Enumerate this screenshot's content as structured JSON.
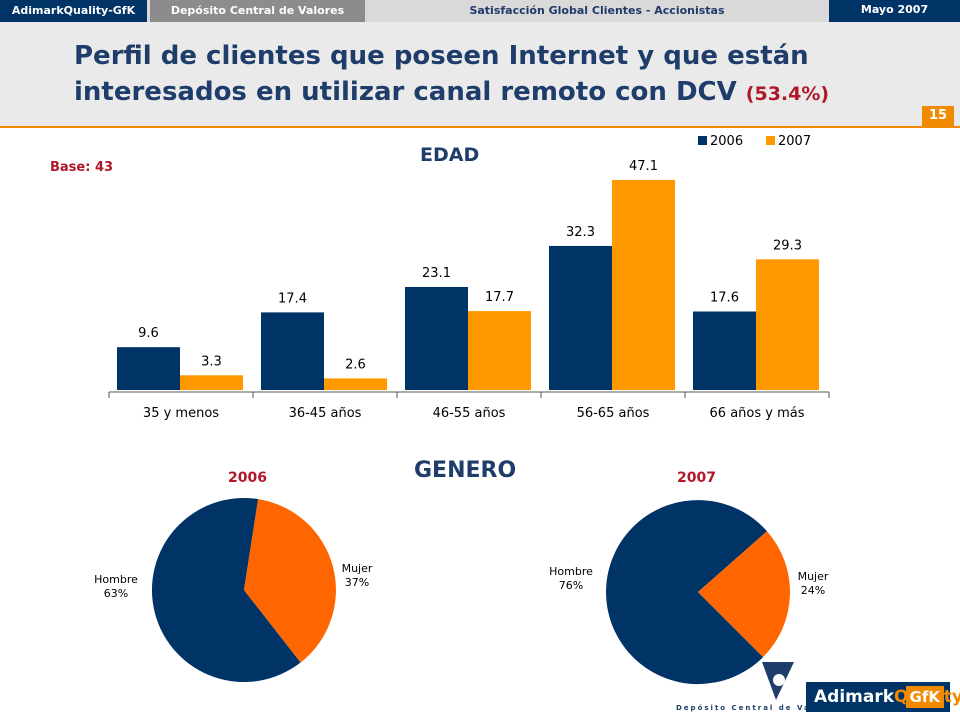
{
  "header": {
    "brand": "AdimarkQuality-GfK",
    "client": "Depósito Central de Valores",
    "study": "Satisfacción Global Clientes - Accionistas",
    "date": "Mayo 2007"
  },
  "title": {
    "text": "Perfil de clientes que poseen Internet y que están interesados en utilizar canal remoto con DCV",
    "pct": "(53.4%)"
  },
  "page_number": "15",
  "base_label": "Base: 43",
  "colors": {
    "s2006": "#003366",
    "s2007": "#ff9900",
    "hombre": "#003366",
    "mujer": "#ff6600",
    "accent": "#f08a00",
    "red_text": "#b0182a"
  },
  "chart_data": [
    {
      "type": "bar",
      "title": "EDAD",
      "categories": [
        "35 y menos",
        "36-45 años",
        "46-55 años",
        "56-65 años",
        "66 años y más"
      ],
      "series": [
        {
          "name": "2006",
          "values": [
            9.6,
            17.4,
            23.1,
            32.3,
            17.6
          ]
        },
        {
          "name": "2007",
          "values": [
            3.3,
            2.6,
            17.7,
            47.1,
            29.3
          ]
        }
      ],
      "legend_position": "top-right",
      "grid": false
    },
    {
      "type": "pie",
      "title": "GENERO",
      "year": "2006",
      "slices": [
        {
          "label": "Hombre",
          "pct_label": "63%",
          "value": 63
        },
        {
          "label": "Mujer",
          "pct_label": "37%",
          "value": 37
        }
      ]
    },
    {
      "type": "pie",
      "title": "GENERO",
      "year": "2007",
      "slices": [
        {
          "label": "Hombre",
          "pct_label": "76%",
          "value": 76
        },
        {
          "label": "Mujer",
          "pct_label": "24%",
          "value": 24
        }
      ]
    }
  ],
  "logos": {
    "dcv_caption": "Depósito Central de Valores",
    "gfk": {
      "part_a": "Adimark",
      "part_b": "Quality",
      "part_c": "GfK"
    }
  }
}
